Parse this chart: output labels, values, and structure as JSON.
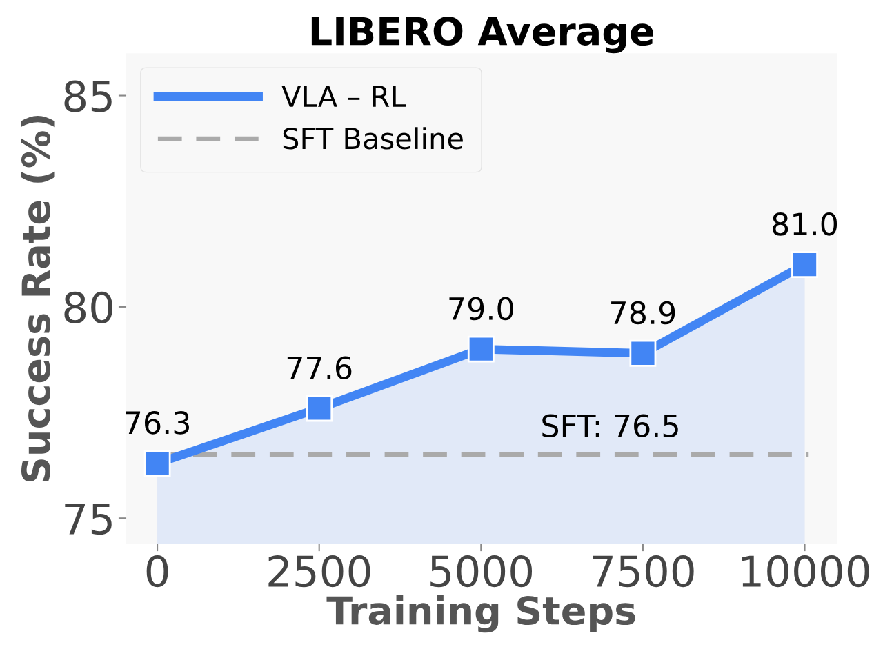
{
  "chart_data": {
    "type": "area",
    "title": "LIBERO Average",
    "xlabel": "Training Steps",
    "ylabel": "Success Rate (%)",
    "x": [
      0,
      2500,
      5000,
      7500,
      10000
    ],
    "series": [
      {
        "name": "VLA – RL",
        "color": "#4285f4",
        "values": [
          76.3,
          77.6,
          79.0,
          78.9,
          81.0
        ],
        "value_labels": [
          "76.3",
          "77.6",
          "79.0",
          "78.9",
          "81.0"
        ]
      }
    ],
    "xlim": [
      -480,
      10500
    ],
    "ylim": [
      74.4,
      86
    ],
    "xticks": [
      0,
      2500,
      5000,
      7500,
      10000
    ],
    "yticks": [
      75,
      80,
      85
    ],
    "ref_lines": [
      {
        "axis": "y",
        "value": 76.5,
        "label": "SFT Baseline",
        "color": "#aaaaaa",
        "line_style": "dashed"
      }
    ],
    "annotations": [
      {
        "text": "SFT: 76.5",
        "x": 7000,
        "y": 76.5
      }
    ],
    "marker": "square",
    "legend": "top left",
    "grid": false
  }
}
